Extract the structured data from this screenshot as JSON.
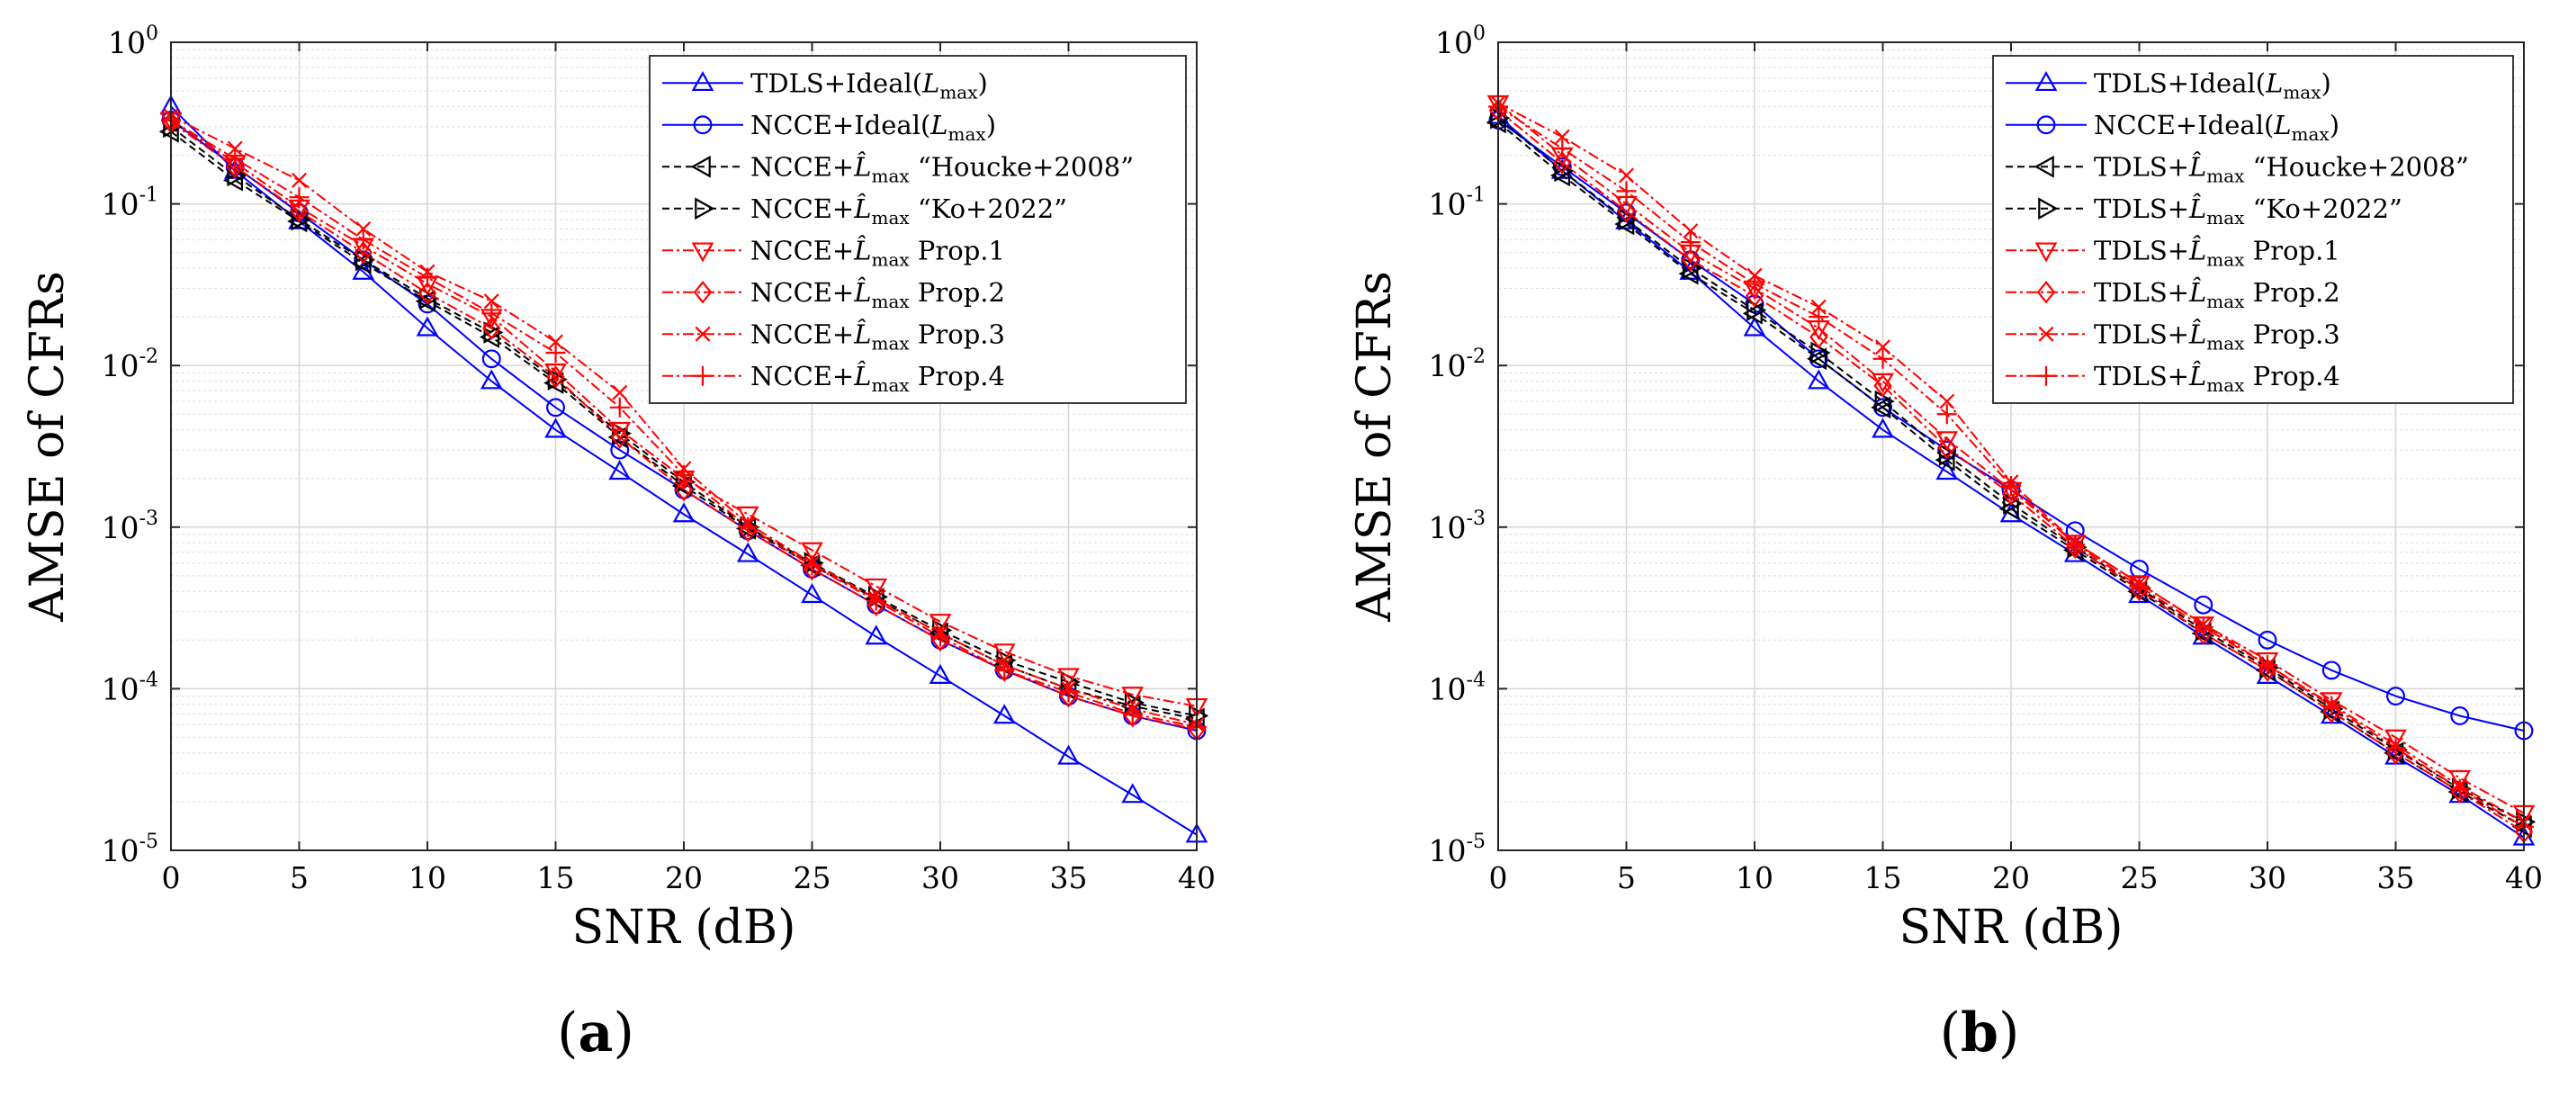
{
  "chart_data": [
    {
      "panel": "(a)",
      "panel_label": {
        "open": "(",
        "letter": "a",
        "close": ")"
      },
      "type": "line",
      "xlabel": "SNR (dB)",
      "ylabel": "AMSE of CFRs",
      "yscale": "log",
      "xlim": [
        0,
        40
      ],
      "ylim": [
        1e-05,
        1
      ],
      "xticks": [
        0,
        5,
        10,
        15,
        20,
        25,
        30,
        35,
        40
      ],
      "yticks": [
        {
          "base": "10",
          "exp": "-5",
          "value": 1e-05
        },
        {
          "base": "10",
          "exp": "-4",
          "value": 0.0001
        },
        {
          "base": "10",
          "exp": "-3",
          "value": 0.001
        },
        {
          "base": "10",
          "exp": "-2",
          "value": 0.01
        },
        {
          "base": "10",
          "exp": "-1",
          "value": 0.1
        },
        {
          "base": "10",
          "exp": "0",
          "value": 1
        }
      ],
      "grid": true,
      "legend_position": "top-right",
      "x": [
        0,
        2.5,
        5,
        7.5,
        10,
        12.5,
        15,
        17.5,
        20,
        22.5,
        25,
        27.5,
        30,
        32.5,
        35,
        37.5,
        40
      ],
      "series": [
        {
          "legend": {
            "prefix": "TDLS+Ideal(",
            "sym": "L",
            "sub": "max",
            "suffix": ")"
          },
          "color": "#0000ff",
          "dash": "solid",
          "marker": "triangle-up",
          "values": [
            0.4,
            0.16,
            0.078,
            0.038,
            0.017,
            0.008,
            0.004,
            0.0022,
            0.0012,
            0.00068,
            0.00038,
            0.00021,
            0.00012,
            6.8e-05,
            3.8e-05,
            2.2e-05,
            1.25e-05
          ]
        },
        {
          "legend": {
            "prefix": "NCCE+Ideal(",
            "sym": "L",
            "sub": "max",
            "suffix": ")"
          },
          "color": "#0000ff",
          "dash": "solid",
          "marker": "circle",
          "values": [
            0.33,
            0.17,
            0.088,
            0.045,
            0.024,
            0.011,
            0.0055,
            0.003,
            0.0017,
            0.00095,
            0.00055,
            0.00033,
            0.0002,
            0.00013,
            9e-05,
            6.8e-05,
            5.5e-05
          ]
        },
        {
          "legend": {
            "prefix": "NCCE+",
            "sym": "L̂",
            "sub": "max",
            "suffix": " “Houcke+2008”"
          },
          "color": "#000000",
          "dash": "dashed",
          "marker": "triangle-left",
          "values": [
            0.28,
            0.14,
            0.078,
            0.043,
            0.025,
            0.015,
            0.0078,
            0.0036,
            0.0018,
            0.00098,
            0.00058,
            0.00036,
            0.00022,
            0.00014,
            0.0001,
            7.8e-05,
            6.5e-05
          ]
        },
        {
          "legend": {
            "prefix": "NCCE+",
            "sym": "L̂",
            "sub": "max",
            "suffix": " “Ko+2022”"
          },
          "color": "#000000",
          "dash": "dashed",
          "marker": "triangle-right",
          "values": [
            0.3,
            0.15,
            0.08,
            0.045,
            0.026,
            0.016,
            0.0082,
            0.0038,
            0.0019,
            0.001,
            0.0006,
            0.00037,
            0.00023,
            0.00015,
            0.00011,
            8.2e-05,
            6.8e-05
          ]
        },
        {
          "legend": {
            "prefix": "NCCE+",
            "sym": "L̂",
            "sub": "max",
            "suffix": " Prop.1"
          },
          "color": "#ff0000",
          "dash": "dashdot",
          "marker": "triangle-down",
          "values": [
            0.33,
            0.18,
            0.095,
            0.055,
            0.032,
            0.02,
            0.0092,
            0.004,
            0.002,
            0.0012,
            0.00072,
            0.00043,
            0.00026,
            0.00017,
            0.00012,
            9.2e-05,
            7.8e-05
          ]
        },
        {
          "legend": {
            "prefix": "NCCE+",
            "sym": "L̂",
            "sub": "max",
            "suffix": " Prop.2"
          },
          "color": "#ff0000",
          "dash": "dashdot",
          "marker": "diamond",
          "values": [
            0.32,
            0.17,
            0.09,
            0.05,
            0.028,
            0.017,
            0.0085,
            0.0036,
            0.0017,
            0.00095,
            0.00055,
            0.00033,
            0.0002,
            0.00013,
            9e-05,
            6.8e-05,
            5.6e-05
          ]
        },
        {
          "legend": {
            "prefix": "NCCE+",
            "sym": "L̂",
            "sub": "max",
            "suffix": " Prop.3"
          },
          "color": "#ff0000",
          "dash": "dashdot",
          "marker": "x",
          "values": [
            0.35,
            0.22,
            0.14,
            0.07,
            0.038,
            0.025,
            0.014,
            0.0068,
            0.0023,
            0.00105,
            0.0006,
            0.00036,
            0.00022,
            0.00014,
            0.0001,
            7.5e-05,
            6e-05
          ]
        },
        {
          "legend": {
            "prefix": "NCCE+",
            "sym": "L̂",
            "sub": "max",
            "suffix": " Prop.4"
          },
          "color": "#ff0000",
          "dash": "dashdot",
          "marker": "plus",
          "values": [
            0.33,
            0.19,
            0.11,
            0.06,
            0.035,
            0.021,
            0.012,
            0.0055,
            0.0021,
            0.001,
            0.00058,
            0.00035,
            0.00021,
            0.00013,
            9.5e-05,
            7e-05,
            5.8e-05
          ]
        }
      ]
    },
    {
      "panel": "(b)",
      "panel_label": {
        "open": "(",
        "letter": "b",
        "close": ")"
      },
      "type": "line",
      "xlabel": "SNR (dB)",
      "ylabel": "AMSE of CFRs",
      "yscale": "log",
      "xlim": [
        0,
        40
      ],
      "ylim": [
        1e-05,
        1
      ],
      "xticks": [
        0,
        5,
        10,
        15,
        20,
        25,
        30,
        35,
        40
      ],
      "yticks": [
        {
          "base": "10",
          "exp": "-5",
          "value": 1e-05
        },
        {
          "base": "10",
          "exp": "-4",
          "value": 0.0001
        },
        {
          "base": "10",
          "exp": "-3",
          "value": 0.001
        },
        {
          "base": "10",
          "exp": "-2",
          "value": 0.01
        },
        {
          "base": "10",
          "exp": "-1",
          "value": 0.1
        },
        {
          "base": "10",
          "exp": "0",
          "value": 1
        }
      ],
      "grid": true,
      "legend_position": "top-right",
      "x": [
        0,
        2.5,
        5,
        7.5,
        10,
        12.5,
        15,
        17.5,
        20,
        22.5,
        25,
        27.5,
        30,
        32.5,
        35,
        37.5,
        40
      ],
      "series": [
        {
          "legend": {
            "prefix": "TDLS+Ideal(",
            "sym": "L",
            "sub": "max",
            "suffix": ")"
          },
          "color": "#0000ff",
          "dash": "solid",
          "marker": "triangle-up",
          "values": [
            0.35,
            0.16,
            0.078,
            0.038,
            0.017,
            0.008,
            0.004,
            0.0022,
            0.0012,
            0.00068,
            0.00038,
            0.00021,
            0.00012,
            6.8e-05,
            3.8e-05,
            2.2e-05,
            1.2e-05
          ]
        },
        {
          "legend": {
            "prefix": "NCCE+Ideal(",
            "sym": "L",
            "sub": "max",
            "suffix": ")"
          },
          "color": "#0000ff",
          "dash": "solid",
          "marker": "circle",
          "values": [
            0.33,
            0.17,
            0.088,
            0.045,
            0.024,
            0.011,
            0.0055,
            0.003,
            0.0017,
            0.00095,
            0.00055,
            0.00033,
            0.0002,
            0.00013,
            9e-05,
            6.8e-05,
            5.5e-05
          ]
        },
        {
          "legend": {
            "prefix": "TDLS+",
            "sym": "L̂",
            "sub": "max",
            "suffix": " “Houcke+2008”"
          },
          "color": "#000000",
          "dash": "dashed",
          "marker": "triangle-left",
          "values": [
            0.32,
            0.15,
            0.075,
            0.037,
            0.021,
            0.011,
            0.0055,
            0.0026,
            0.0013,
            0.00072,
            0.0004,
            0.00022,
            0.00013,
            7.2e-05,
            4e-05,
            2.3e-05,
            1.4e-05
          ]
        },
        {
          "legend": {
            "prefix": "TDLS+",
            "sym": "L̂",
            "sub": "max",
            "suffix": " “Ko+2022”"
          },
          "color": "#000000",
          "dash": "dashed",
          "marker": "triangle-right",
          "values": [
            0.34,
            0.16,
            0.08,
            0.04,
            0.022,
            0.012,
            0.006,
            0.0028,
            0.0014,
            0.00075,
            0.00042,
            0.00023,
            0.000135,
            7.5e-05,
            4.2e-05,
            2.4e-05,
            1.5e-05
          ]
        },
        {
          "legend": {
            "prefix": "TDLS+",
            "sym": "L̂",
            "sub": "max",
            "suffix": " Prop.1"
          },
          "color": "#ff0000",
          "dash": "dashdot",
          "marker": "triangle-down",
          "values": [
            0.42,
            0.2,
            0.1,
            0.05,
            0.03,
            0.017,
            0.008,
            0.0035,
            0.0017,
            0.0008,
            0.00045,
            0.00025,
            0.00015,
            8.5e-05,
            5e-05,
            2.8e-05,
            1.7e-05
          ]
        },
        {
          "legend": {
            "prefix": "TDLS+",
            "sym": "L̂",
            "sub": "max",
            "suffix": " Prop.2"
          },
          "color": "#ff0000",
          "dash": "dashdot",
          "marker": "diamond",
          "values": [
            0.38,
            0.18,
            0.09,
            0.045,
            0.027,
            0.015,
            0.0075,
            0.0031,
            0.0016,
            0.00075,
            0.00041,
            0.00022,
            0.00013,
            7.2e-05,
            4e-05,
            2.3e-05,
            1.3e-05
          ]
        },
        {
          "legend": {
            "prefix": "TDLS+",
            "sym": "L̂",
            "sub": "max",
            "suffix": " Prop.3"
          },
          "color": "#ff0000",
          "dash": "dashdot",
          "marker": "x",
          "values": [
            0.42,
            0.26,
            0.15,
            0.068,
            0.036,
            0.023,
            0.013,
            0.006,
            0.0019,
            0.0008,
            0.00045,
            0.00025,
            0.00014,
            8e-05,
            4.5e-05,
            2.5e-05,
            1.5e-05
          ]
        },
        {
          "legend": {
            "prefix": "TDLS+",
            "sym": "L̂",
            "sub": "max",
            "suffix": " Prop.4"
          },
          "color": "#ff0000",
          "dash": "dashdot",
          "marker": "plus",
          "values": [
            0.4,
            0.22,
            0.12,
            0.058,
            0.032,
            0.02,
            0.011,
            0.005,
            0.0018,
            0.00078,
            0.00043,
            0.00024,
            0.00014,
            7.8e-05,
            4.3e-05,
            2.4e-05,
            1.4e-05
          ]
        }
      ]
    }
  ]
}
